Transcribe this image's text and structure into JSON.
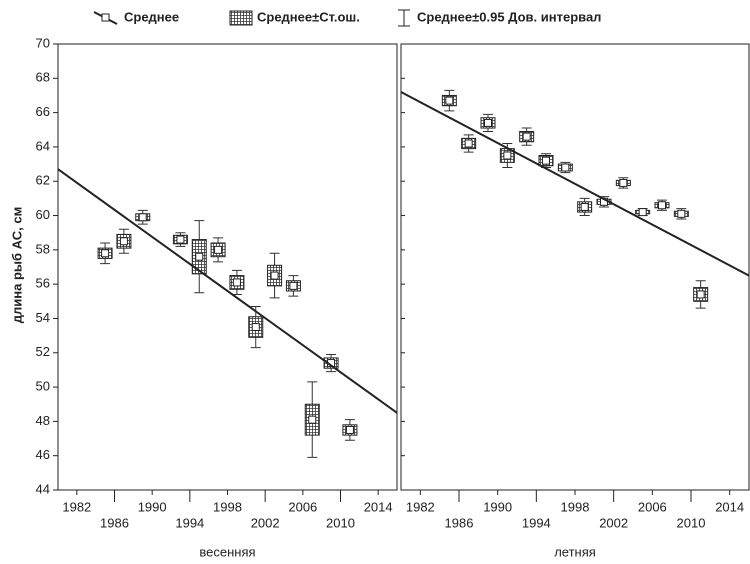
{
  "legend": [
    "Среднее",
    "Среднее±Ст.ош.",
    "Среднее±0.95 Дов. интервал"
  ],
  "y_label": "длина рыб АС, см",
  "chart_data": [
    {
      "type": "box",
      "x_label": "весенняя",
      "xlim": [
        1980,
        2016
      ],
      "ylim": [
        44,
        70
      ],
      "xticks": [
        1982,
        1986,
        1990,
        1994,
        1998,
        2002,
        2006,
        2010,
        2014
      ],
      "yticks": [
        44,
        46,
        48,
        50,
        52,
        54,
        56,
        58,
        60,
        62,
        64,
        66,
        68,
        70
      ],
      "x": [
        1985,
        1987,
        1989,
        1993,
        1995,
        1997,
        1999,
        2001,
        2003,
        2005,
        2007,
        2009,
        2011
      ],
      "mean": [
        57.8,
        58.5,
        59.9,
        58.6,
        57.6,
        58.0,
        56.1,
        53.5,
        56.5,
        55.9,
        48.1,
        51.4,
        47.5
      ],
      "se": [
        0.3,
        0.4,
        0.2,
        0.25,
        1.0,
        0.4,
        0.4,
        0.6,
        0.6,
        0.3,
        0.9,
        0.3,
        0.3
      ],
      "ci": [
        0.6,
        0.7,
        0.4,
        0.4,
        2.1,
        0.7,
        0.7,
        1.2,
        1.3,
        0.6,
        2.2,
        0.5,
        0.6
      ],
      "trend": {
        "x": [
          1980,
          2016
        ],
        "y": [
          62.7,
          48.5
        ]
      }
    },
    {
      "type": "box",
      "x_label": "летняя",
      "xlim": [
        1980,
        2016
      ],
      "ylim": [
        44,
        70
      ],
      "xticks": [
        1982,
        1986,
        1990,
        1994,
        1998,
        2002,
        2006,
        2010,
        2014
      ],
      "yticks": [
        44,
        46,
        48,
        50,
        52,
        54,
        56,
        58,
        60,
        62,
        64,
        66,
        68,
        70
      ],
      "x": [
        1985,
        1987,
        1989,
        1991,
        1993,
        1995,
        1997,
        1999,
        2001,
        2003,
        2005,
        2007,
        2009,
        2011
      ],
      "mean": [
        66.7,
        64.2,
        65.4,
        63.5,
        64.6,
        63.2,
        62.8,
        60.5,
        60.8,
        61.9,
        60.2,
        60.6,
        60.1,
        55.4
      ],
      "se": [
        0.3,
        0.3,
        0.3,
        0.4,
        0.3,
        0.3,
        0.2,
        0.3,
        0.15,
        0.15,
        0.1,
        0.15,
        0.15,
        0.4
      ],
      "ci": [
        0.6,
        0.5,
        0.5,
        0.7,
        0.5,
        0.4,
        0.3,
        0.5,
        0.3,
        0.3,
        0.2,
        0.3,
        0.3,
        0.8
      ],
      "trend": {
        "x": [
          1980,
          2016
        ],
        "y": [
          67.2,
          56.5
        ]
      }
    }
  ]
}
